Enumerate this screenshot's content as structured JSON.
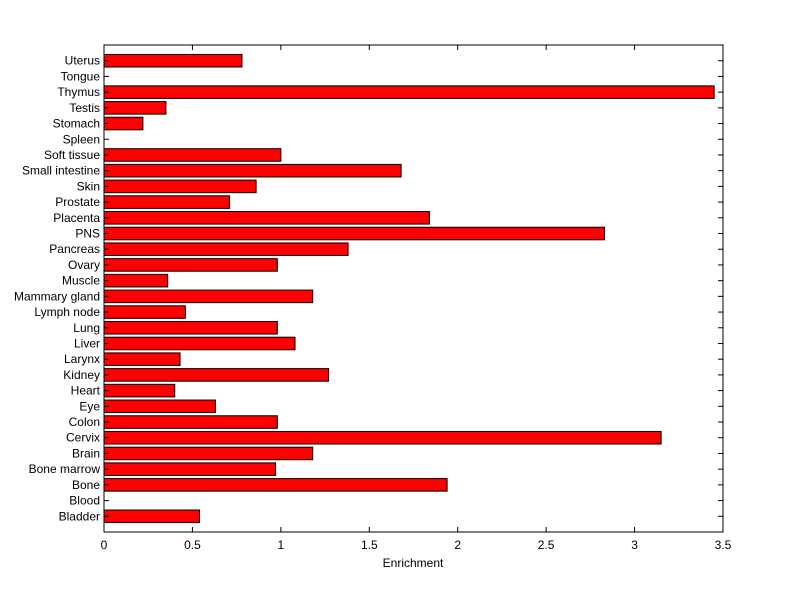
{
  "chart_data": {
    "type": "bar",
    "orientation": "horizontal",
    "title": "",
    "xlabel": "Enrichment",
    "ylabel": "",
    "xlim": [
      0,
      3.5
    ],
    "xticks": [
      0,
      0.5,
      1,
      1.5,
      2,
      2.5,
      3,
      3.5
    ],
    "xtick_labels": [
      "0",
      "0.5",
      "1",
      "1.5",
      "2",
      "2.5",
      "3",
      "3.5"
    ],
    "grid": false,
    "legend": "none",
    "bar_color": "#ff0000",
    "bar_edge_color": "#000000",
    "categories": [
      "Bladder",
      "Blood",
      "Bone",
      "Bone marrow",
      "Brain",
      "Cervix",
      "Colon",
      "Eye",
      "Heart",
      "Kidney",
      "Larynx",
      "Liver",
      "Lung",
      "Lymph node",
      "Mammary gland",
      "Muscle",
      "Ovary",
      "Pancreas",
      "PNS",
      "Placenta",
      "Prostate",
      "Skin",
      "Small intestine",
      "Soft tissue",
      "Spleen",
      "Stomach",
      "Testis",
      "Thymus",
      "Tongue",
      "Uterus"
    ],
    "values": [
      0.54,
      0,
      1.94,
      0.97,
      1.18,
      3.15,
      0.98,
      0.63,
      0.4,
      1.27,
      0.43,
      1.08,
      0.98,
      0.46,
      1.18,
      0.36,
      0.98,
      1.38,
      2.83,
      1.84,
      0.71,
      0.86,
      1.68,
      1.0,
      0,
      0.22,
      0.35,
      3.45,
      0,
      0.78
    ]
  }
}
